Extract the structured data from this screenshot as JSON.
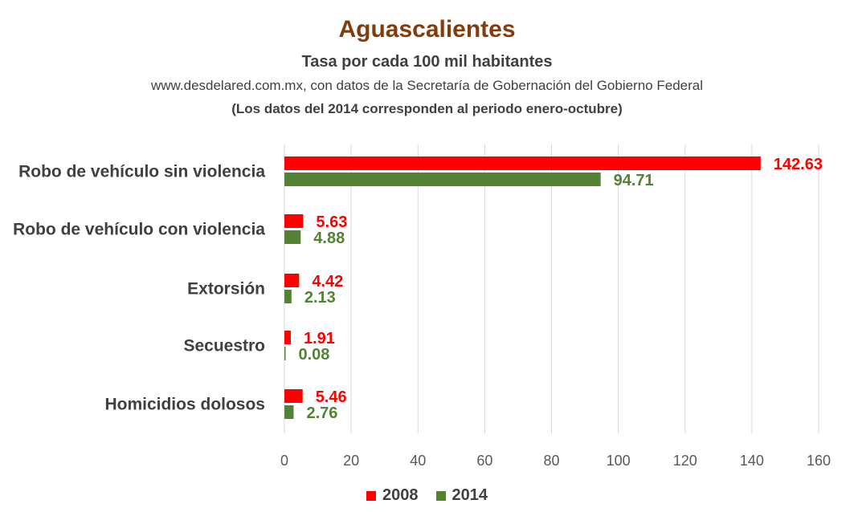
{
  "chart_data": {
    "type": "bar",
    "orientation": "horizontal",
    "title": "Aguascalientes",
    "subtitle": "Tasa por cada 100 mil habitantes",
    "source": "www.desdelared.com.mx, con datos de la Secretaría de Gobernación del Gobierno Federal",
    "note": "(Los datos del 2014 corresponden al periodo enero-octubre)",
    "categories": [
      "Robo de vehículo sin violencia",
      "Robo de vehículo con violencia",
      "Extorsión",
      "Secuestro",
      "Homicidios dolosos"
    ],
    "series": [
      {
        "name": "2008",
        "color": "#ff0000",
        "values": [
          142.63,
          5.63,
          4.42,
          1.91,
          5.46
        ]
      },
      {
        "name": "2014",
        "color": "#548235",
        "values": [
          94.71,
          4.88,
          2.13,
          0.08,
          2.76
        ]
      }
    ],
    "value_labels": {
      "2008": [
        "142.63",
        "5.63",
        "4.42",
        "1.91",
        "5.46"
      ],
      "2014": [
        "94.71",
        "4.88",
        "2.13",
        "0.08",
        "2.76"
      ]
    },
    "xlim": [
      0,
      160
    ],
    "xticks": [
      "0",
      "20",
      "40",
      "60",
      "80",
      "100",
      "120",
      "140",
      "160"
    ],
    "grid": true,
    "legend_position": "bottom"
  }
}
